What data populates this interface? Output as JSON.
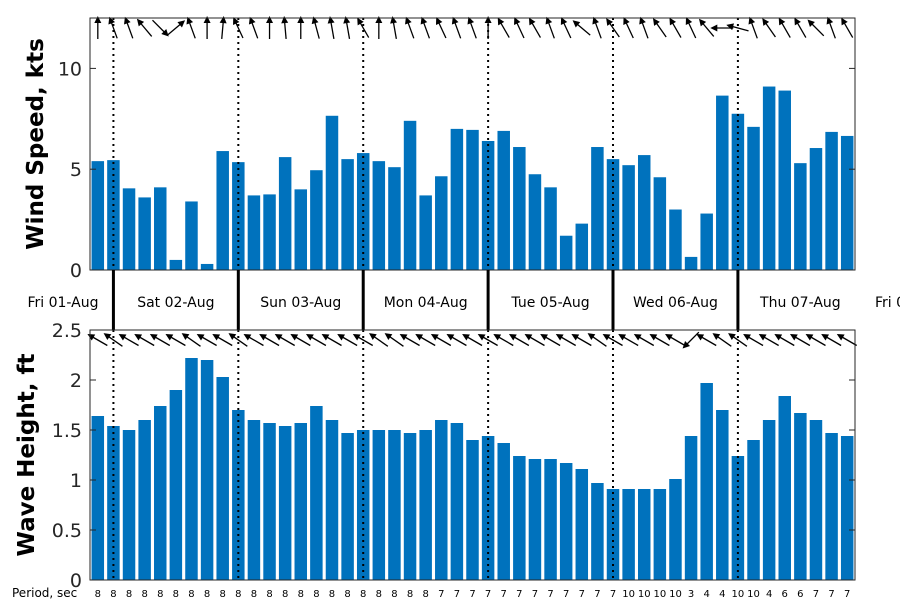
{
  "chart_data": [
    {
      "type": "bar",
      "ylabel": "Wind Speed, kts",
      "ylim": [
        0,
        12.5
      ],
      "yticks": [
        0,
        5,
        10
      ],
      "bar_color": "#0072bd",
      "values": [
        5.4,
        5.45,
        4.05,
        3.6,
        4.1,
        0.5,
        3.4,
        0.3,
        5.9,
        5.35,
        3.7,
        3.75,
        5.6,
        4.0,
        4.95,
        7.65,
        5.5,
        5.8,
        5.4,
        5.1,
        7.4,
        3.7,
        4.65,
        7.0,
        6.95,
        6.4,
        6.9,
        6.1,
        4.75,
        4.1,
        1.7,
        2.3,
        6.1,
        5.5,
        5.2,
        5.7,
        4.6,
        3.0,
        0.65,
        2.8,
        8.65,
        7.75,
        7.1,
        9.1,
        8.9,
        5.3,
        6.05,
        6.85,
        6.65
      ],
      "wind_direction_arrows_deg": [
        270,
        250,
        250,
        230,
        45,
        320,
        250,
        270,
        275,
        245,
        250,
        270,
        265,
        270,
        255,
        260,
        260,
        240,
        270,
        260,
        250,
        250,
        245,
        250,
        250,
        270,
        240,
        245,
        240,
        250,
        245,
        220,
        250,
        235,
        245,
        250,
        235,
        240,
        245,
        230,
        180,
        195,
        250,
        235,
        240,
        240,
        225,
        250,
        240
      ]
    },
    {
      "type": "bar",
      "ylabel": "Wave Height, ft",
      "ylim": [
        0,
        2.5
      ],
      "yticks": [
        "0",
        "0.5",
        "1",
        "1.5",
        "2",
        "2.5"
      ],
      "bar_color": "#0072bd",
      "values": [
        1.64,
        1.54,
        1.5,
        1.6,
        1.74,
        1.9,
        2.22,
        2.2,
        2.03,
        1.7,
        1.6,
        1.57,
        1.54,
        1.57,
        1.74,
        1.6,
        1.47,
        1.5,
        1.5,
        1.5,
        1.47,
        1.5,
        1.6,
        1.57,
        1.4,
        1.44,
        1.37,
        1.24,
        1.21,
        1.21,
        1.17,
        1.11,
        0.97,
        0.91,
        0.91,
        0.91,
        0.91,
        1.01,
        1.44,
        1.97,
        1.7,
        1.24,
        1.4,
        1.6,
        1.84,
        1.67,
        1.6,
        1.47,
        1.44
      ],
      "wave_direction_arrows_deg": [
        210,
        215,
        210,
        210,
        210,
        210,
        215,
        210,
        210,
        215,
        210,
        210,
        210,
        210,
        210,
        210,
        210,
        210,
        215,
        215,
        210,
        210,
        210,
        210,
        210,
        210,
        210,
        210,
        210,
        210,
        210,
        210,
        215,
        210,
        210,
        210,
        210,
        210,
        135,
        210,
        215,
        215,
        210,
        210,
        210,
        210,
        210,
        210,
        210
      ],
      "period_label": "Period, sec",
      "periods": [
        "8",
        "8",
        "8",
        "8",
        "8",
        "8",
        "8",
        "8",
        "8",
        "8",
        "8",
        "8",
        "8",
        "8",
        "8",
        "8",
        "8",
        "8",
        "8",
        "8",
        "8",
        "8",
        "7",
        "7",
        "7",
        "7",
        "7",
        "7",
        "7",
        "7",
        "7",
        "7",
        "7",
        "7",
        "10",
        "10",
        "10",
        "10",
        "3",
        "4",
        "4",
        "10",
        "10",
        "4",
        "6",
        "6",
        "7",
        "7",
        "7"
      ]
    }
  ],
  "days": [
    "Fri 01-Aug",
    "Sat 02-Aug",
    "Sun 03-Aug",
    "Mon 04-Aug",
    "Tue 05-Aug",
    "Wed 06-Aug",
    "Thu 07-Aug",
    "Fri 0"
  ]
}
